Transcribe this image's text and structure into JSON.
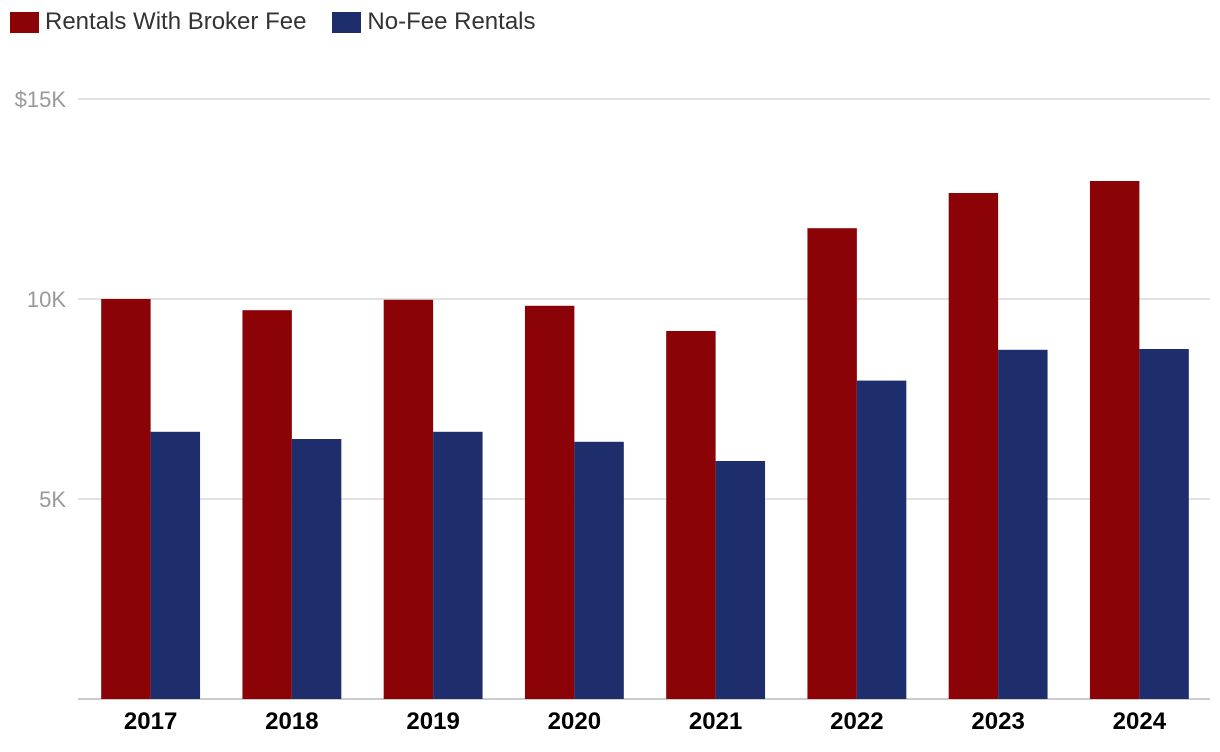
{
  "chart_data": {
    "type": "bar",
    "title": "",
    "xlabel": "",
    "ylabel": "",
    "categories": [
      "2017",
      "2018",
      "2019",
      "2020",
      "2021",
      "2022",
      "2023",
      "2024"
    ],
    "series": [
      {
        "name": "Rentals With Broker Fee",
        "color": "#8b0306",
        "values": [
          10000,
          9720,
          9980,
          9830,
          9200,
          11770,
          12650,
          12950
        ]
      },
      {
        "name": "No-Fee Rentals",
        "color": "#1e2d6c",
        "values": [
          6680,
          6500,
          6680,
          6430,
          5950,
          7960,
          8730,
          8750
        ]
      }
    ],
    "ylim": [
      0,
      15000
    ],
    "yticks": [
      {
        "value": 5000,
        "label": "5K"
      },
      {
        "value": 10000,
        "label": "10K"
      },
      {
        "value": 15000,
        "label": "$15K"
      }
    ],
    "grid": true,
    "legend_position": "top-left"
  },
  "colors": {
    "grid": "#d8d8d8",
    "axis": "#bbbbbb"
  }
}
